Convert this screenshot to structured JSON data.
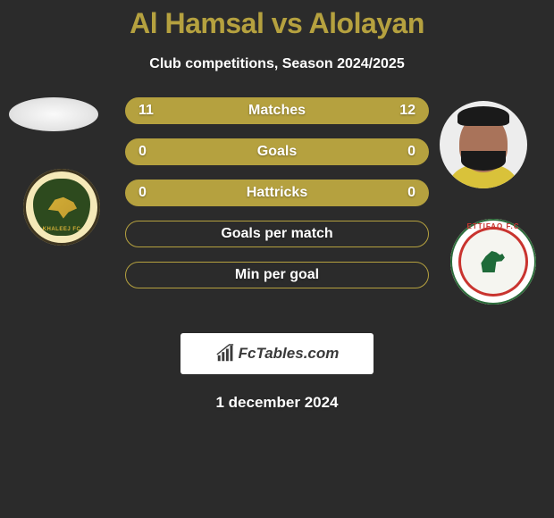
{
  "title_left": "Al Hamsal",
  "title_vs": "vs",
  "title_right": "Alolayan",
  "title_color": "#b5a13f",
  "subtitle": "Club competitions, Season 2024/2025",
  "bars": [
    {
      "label": "Matches",
      "left": "11",
      "right": "12",
      "filled": true
    },
    {
      "label": "Goals",
      "left": "0",
      "right": "0",
      "filled": true
    },
    {
      "label": "Hattricks",
      "left": "0",
      "right": "0",
      "filled": true
    },
    {
      "label": "Goals per match",
      "left": "",
      "right": "",
      "filled": false
    },
    {
      "label": "Min per goal",
      "left": "",
      "right": "",
      "filled": false
    }
  ],
  "bar_border_color": "#b5a13f",
  "bar_fill_color": "#b5a13f",
  "brand_text": "FcTables.com",
  "date_text": "1 december 2024",
  "club_right_ring_text": "ETTIFAQ F.C",
  "club_left_shield_text": "KHALEEJ FC",
  "background_color": "#2b2b2b"
}
